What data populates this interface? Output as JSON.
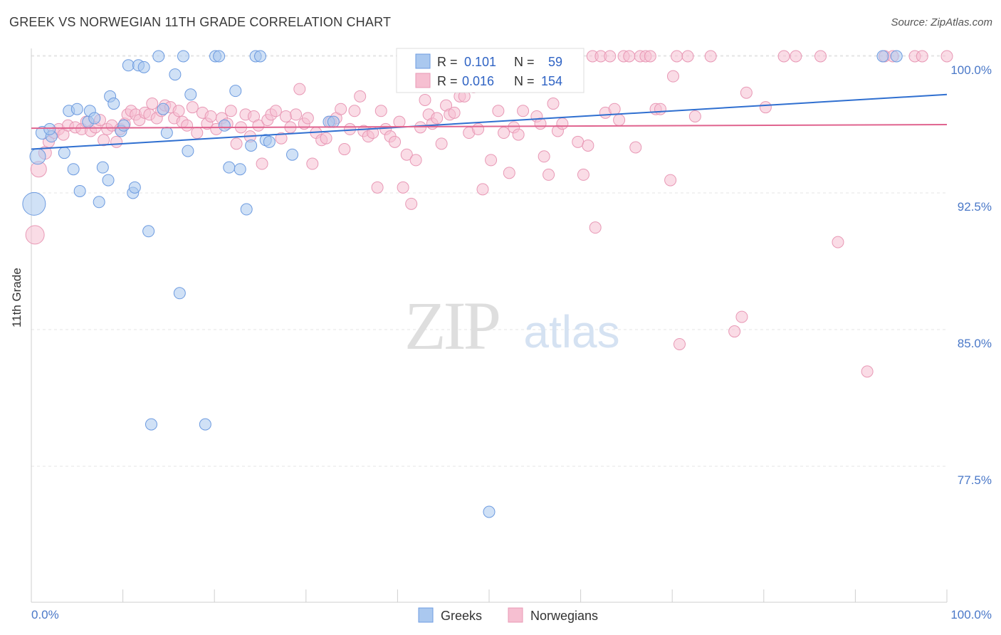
{
  "header": {
    "title": "GREEK VS NORWEGIAN 11TH GRADE CORRELATION CHART",
    "source": "Source: ZipAtlas.com"
  },
  "watermark": {
    "zip": "ZIP",
    "atlas": "atlas"
  },
  "colors": {
    "greeks_fill": "#aac8ef",
    "greeks_stroke": "#6d9be0",
    "greeks_line": "#2f6fd0",
    "norwegians_fill": "#f6bfd1",
    "norwegians_stroke": "#e898b5",
    "norwegians_line": "#e0648f",
    "axis_text": "#4a78c8"
  },
  "legend": {
    "r_label": "R =",
    "n_label": "N =",
    "greeks": {
      "r": "0.101",
      "n": "59"
    },
    "norwegians": {
      "r": "0.016",
      "n": "154"
    }
  },
  "chart_data": {
    "type": "scatter",
    "title": "GREEK VS NORWEGIAN 11TH GRADE CORRELATION CHART",
    "xlabel": "",
    "ylabel": "11th Grade",
    "xlim": [
      0,
      100
    ],
    "ylim": [
      70.5,
      101
    ],
    "x_tick_labels": [
      "0.0%",
      "100.0%"
    ],
    "y_ticks": [
      77.5,
      85.0,
      92.5,
      100.0
    ],
    "y_tick_labels": [
      "77.5%",
      "85.0%",
      "92.5%",
      "100.0%"
    ],
    "grid": true,
    "legend_position": "top-center",
    "series": [
      {
        "name": "Greeks",
        "trend": {
          "x": [
            0,
            100
          ],
          "y": [
            94.9,
            97.9
          ]
        },
        "points": [
          [
            0.3,
            91.9,
            16
          ],
          [
            0.7,
            94.5,
            11
          ],
          [
            1.2,
            95.8,
            9
          ],
          [
            2.2,
            95.6,
            8
          ],
          [
            2.0,
            96.0,
            8
          ],
          [
            3.6,
            94.7,
            8
          ],
          [
            4.1,
            97.0,
            8
          ],
          [
            4.6,
            93.8,
            8
          ],
          [
            5.0,
            97.1,
            8
          ],
          [
            5.3,
            92.6,
            8
          ],
          [
            6.2,
            96.4,
            8
          ],
          [
            6.4,
            97.0,
            8
          ],
          [
            6.9,
            96.6,
            8
          ],
          [
            7.4,
            92.0,
            8
          ],
          [
            7.8,
            93.9,
            8
          ],
          [
            8.4,
            93.2,
            8
          ],
          [
            8.6,
            97.8,
            8
          ],
          [
            9.0,
            97.4,
            8
          ],
          [
            9.8,
            95.9,
            8
          ],
          [
            10.1,
            96.2,
            8
          ],
          [
            10.6,
            99.5,
            8
          ],
          [
            11.1,
            92.5,
            8
          ],
          [
            11.3,
            92.8,
            8
          ],
          [
            11.7,
            99.5,
            8
          ],
          [
            12.3,
            99.4,
            8
          ],
          [
            12.8,
            90.4,
            8
          ],
          [
            13.1,
            79.8,
            8
          ],
          [
            13.9,
            100.0,
            8
          ],
          [
            14.4,
            97.1,
            8
          ],
          [
            14.8,
            95.8,
            8
          ],
          [
            15.7,
            99.0,
            8
          ],
          [
            16.2,
            87.0,
            8
          ],
          [
            16.6,
            100.0,
            8
          ],
          [
            17.1,
            94.8,
            8
          ],
          [
            17.4,
            97.9,
            8
          ],
          [
            19.0,
            79.8,
            8
          ],
          [
            20.1,
            100.0,
            8
          ],
          [
            20.5,
            100.0,
            8
          ],
          [
            21.1,
            96.2,
            8
          ],
          [
            21.6,
            93.9,
            8
          ],
          [
            22.3,
            98.1,
            8
          ],
          [
            22.8,
            93.8,
            8
          ],
          [
            23.5,
            91.6,
            8
          ],
          [
            24.0,
            95.1,
            8
          ],
          [
            24.5,
            100.0,
            8
          ],
          [
            25.0,
            100.0,
            8
          ],
          [
            25.6,
            95.4,
            8
          ],
          [
            26.0,
            95.3,
            8
          ],
          [
            28.5,
            94.6,
            8
          ],
          [
            32.5,
            96.4,
            8
          ],
          [
            33.0,
            96.4,
            8
          ],
          [
            41.8,
            100.0,
            8
          ],
          [
            42.2,
            100.0,
            8
          ],
          [
            50.0,
            75.0,
            8
          ],
          [
            51.0,
            100.0,
            8
          ],
          [
            55.0,
            100.0,
            8
          ],
          [
            59.0,
            100.0,
            8
          ],
          [
            93.0,
            100.0,
            8
          ],
          [
            94.5,
            100.0,
            8
          ]
        ]
      },
      {
        "name": "Norwegians",
        "trend": {
          "x": [
            0,
            100
          ],
          "y": [
            96.05,
            96.25
          ]
        },
        "points": [
          [
            0.4,
            90.2,
            13
          ],
          [
            0.8,
            93.8,
            11
          ],
          [
            1.5,
            94.7,
            9
          ],
          [
            1.9,
            95.3,
            8
          ],
          [
            2.5,
            95.8,
            8
          ],
          [
            3.0,
            96.0,
            8
          ],
          [
            3.5,
            95.7,
            8
          ],
          [
            4.0,
            96.2,
            8
          ],
          [
            4.8,
            96.1,
            8
          ],
          [
            5.5,
            96.0,
            8
          ],
          [
            6.0,
            96.4,
            8
          ],
          [
            6.5,
            95.9,
            8
          ],
          [
            7.0,
            96.1,
            8
          ],
          [
            7.5,
            96.5,
            8
          ],
          [
            7.9,
            95.4,
            8
          ],
          [
            8.3,
            96.0,
            8
          ],
          [
            8.8,
            96.2,
            8
          ],
          [
            9.3,
            95.3,
            8
          ],
          [
            9.7,
            96.0,
            8
          ],
          [
            10.2,
            96.3,
            8
          ],
          [
            10.5,
            96.8,
            8
          ],
          [
            10.9,
            97.0,
            8
          ],
          [
            11.4,
            96.8,
            8
          ],
          [
            11.8,
            96.5,
            8
          ],
          [
            12.4,
            96.9,
            8
          ],
          [
            12.9,
            96.8,
            8
          ],
          [
            13.2,
            97.4,
            8
          ],
          [
            13.7,
            96.6,
            8
          ],
          [
            14.2,
            97.0,
            8
          ],
          [
            14.6,
            97.3,
            8
          ],
          [
            15.2,
            97.2,
            8
          ],
          [
            15.6,
            96.6,
            8
          ],
          [
            16.1,
            97.0,
            8
          ],
          [
            16.5,
            96.4,
            8
          ],
          [
            17.0,
            96.2,
            8
          ],
          [
            17.6,
            97.2,
            8
          ],
          [
            18.1,
            95.8,
            8
          ],
          [
            18.7,
            96.9,
            8
          ],
          [
            19.2,
            96.3,
            8
          ],
          [
            19.6,
            96.7,
            8
          ],
          [
            20.2,
            96.0,
            8
          ],
          [
            20.8,
            96.6,
            8
          ],
          [
            21.4,
            96.3,
            8
          ],
          [
            21.8,
            97.0,
            8
          ],
          [
            22.4,
            95.2,
            8
          ],
          [
            22.9,
            96.1,
            8
          ],
          [
            23.4,
            96.8,
            8
          ],
          [
            23.9,
            95.6,
            8
          ],
          [
            24.3,
            96.7,
            8
          ],
          [
            24.8,
            96.2,
            8
          ],
          [
            25.2,
            94.1,
            8
          ],
          [
            25.8,
            96.5,
            8
          ],
          [
            26.2,
            96.8,
            8
          ],
          [
            26.7,
            97.0,
            8
          ],
          [
            27.3,
            95.5,
            8
          ],
          [
            27.8,
            96.7,
            8
          ],
          [
            28.3,
            96.1,
            8
          ],
          [
            28.9,
            96.8,
            8
          ],
          [
            29.3,
            98.2,
            8
          ],
          [
            29.8,
            96.3,
            8
          ],
          [
            30.2,
            96.6,
            8
          ],
          [
            30.7,
            94.1,
            8
          ],
          [
            31.1,
            95.8,
            8
          ],
          [
            31.7,
            95.4,
            8
          ],
          [
            32.2,
            95.5,
            8
          ],
          [
            32.7,
            96.4,
            8
          ],
          [
            33.3,
            96.6,
            8
          ],
          [
            33.8,
            97.1,
            8
          ],
          [
            34.2,
            94.9,
            8
          ],
          [
            34.8,
            96.0,
            8
          ],
          [
            35.3,
            97.0,
            8
          ],
          [
            35.9,
            97.8,
            8
          ],
          [
            36.3,
            95.9,
            8
          ],
          [
            36.8,
            95.6,
            8
          ],
          [
            37.3,
            95.8,
            8
          ],
          [
            37.8,
            92.8,
            8
          ],
          [
            38.2,
            97.0,
            8
          ],
          [
            38.7,
            96.0,
            8
          ],
          [
            39.2,
            95.6,
            8
          ],
          [
            39.7,
            95.3,
            8
          ],
          [
            40.2,
            96.4,
            8
          ],
          [
            40.6,
            92.8,
            8
          ],
          [
            41.0,
            94.6,
            8
          ],
          [
            41.5,
            91.9,
            8
          ],
          [
            42.0,
            94.3,
            8
          ],
          [
            42.5,
            96.1,
            8
          ],
          [
            43.0,
            97.6,
            8
          ],
          [
            43.4,
            96.8,
            8
          ],
          [
            43.8,
            96.3,
            8
          ],
          [
            44.3,
            96.6,
            8
          ],
          [
            44.8,
            95.2,
            8
          ],
          [
            45.3,
            97.3,
            8
          ],
          [
            45.7,
            96.8,
            8
          ],
          [
            46.2,
            96.9,
            8
          ],
          [
            46.8,
            97.8,
            8
          ],
          [
            47.3,
            97.8,
            8
          ],
          [
            47.8,
            95.8,
            8
          ],
          [
            48.3,
            98.3,
            8
          ],
          [
            48.8,
            96.0,
            8
          ],
          [
            49.3,
            92.7,
            8
          ],
          [
            50.2,
            94.3,
            8
          ],
          [
            51.0,
            97.0,
            8
          ],
          [
            51.6,
            95.8,
            8
          ],
          [
            52.2,
            93.6,
            8
          ],
          [
            52.7,
            96.1,
            8
          ],
          [
            53.2,
            95.7,
            8
          ],
          [
            53.7,
            97.0,
            8
          ],
          [
            54.2,
            100.0,
            8
          ],
          [
            55.2,
            96.7,
            8
          ],
          [
            55.6,
            96.3,
            8
          ],
          [
            56.0,
            94.5,
            8
          ],
          [
            56.5,
            93.5,
            8
          ],
          [
            57.0,
            97.4,
            8
          ],
          [
            57.5,
            95.9,
            8
          ],
          [
            58.0,
            96.3,
            8
          ],
          [
            59.7,
            95.3,
            8
          ],
          [
            60.3,
            93.5,
            8
          ],
          [
            60.8,
            95.1,
            8
          ],
          [
            61.3,
            100.0,
            8
          ],
          [
            61.6,
            90.6,
            8
          ],
          [
            62.2,
            100.0,
            8
          ],
          [
            62.7,
            96.9,
            8
          ],
          [
            63.2,
            100.0,
            8
          ],
          [
            63.7,
            97.1,
            8
          ],
          [
            64.2,
            96.5,
            8
          ],
          [
            64.7,
            100.0,
            8
          ],
          [
            65.3,
            100.0,
            8
          ],
          [
            66.0,
            95.0,
            8
          ],
          [
            66.5,
            100.0,
            8
          ],
          [
            67.1,
            100.0,
            8
          ],
          [
            67.6,
            100.0,
            8
          ],
          [
            68.2,
            97.1,
            8
          ],
          [
            68.7,
            97.1,
            8
          ],
          [
            69.8,
            93.2,
            8
          ],
          [
            70.1,
            98.9,
            8
          ],
          [
            70.5,
            100.0,
            8
          ],
          [
            70.8,
            84.2,
            8
          ],
          [
            71.7,
            100.0,
            8
          ],
          [
            72.5,
            96.7,
            8
          ],
          [
            74.2,
            100.0,
            8
          ],
          [
            76.8,
            84.9,
            8
          ],
          [
            77.6,
            85.7,
            8
          ],
          [
            78.1,
            98.0,
            8
          ],
          [
            80.2,
            97.2,
            8
          ],
          [
            82.2,
            100.0,
            8
          ],
          [
            83.5,
            100.0,
            8
          ],
          [
            86.2,
            100.0,
            8
          ],
          [
            88.1,
            89.8,
            8
          ],
          [
            91.3,
            82.7,
            8
          ],
          [
            93.2,
            100.0,
            8
          ],
          [
            94.1,
            100.0,
            8
          ],
          [
            96.5,
            100.0,
            8
          ],
          [
            97.3,
            100.0,
            8
          ],
          [
            100.0,
            100.0,
            8
          ]
        ]
      }
    ]
  },
  "bottom_legend": {
    "greeks": "Greeks",
    "norwegians": "Norwegians"
  }
}
